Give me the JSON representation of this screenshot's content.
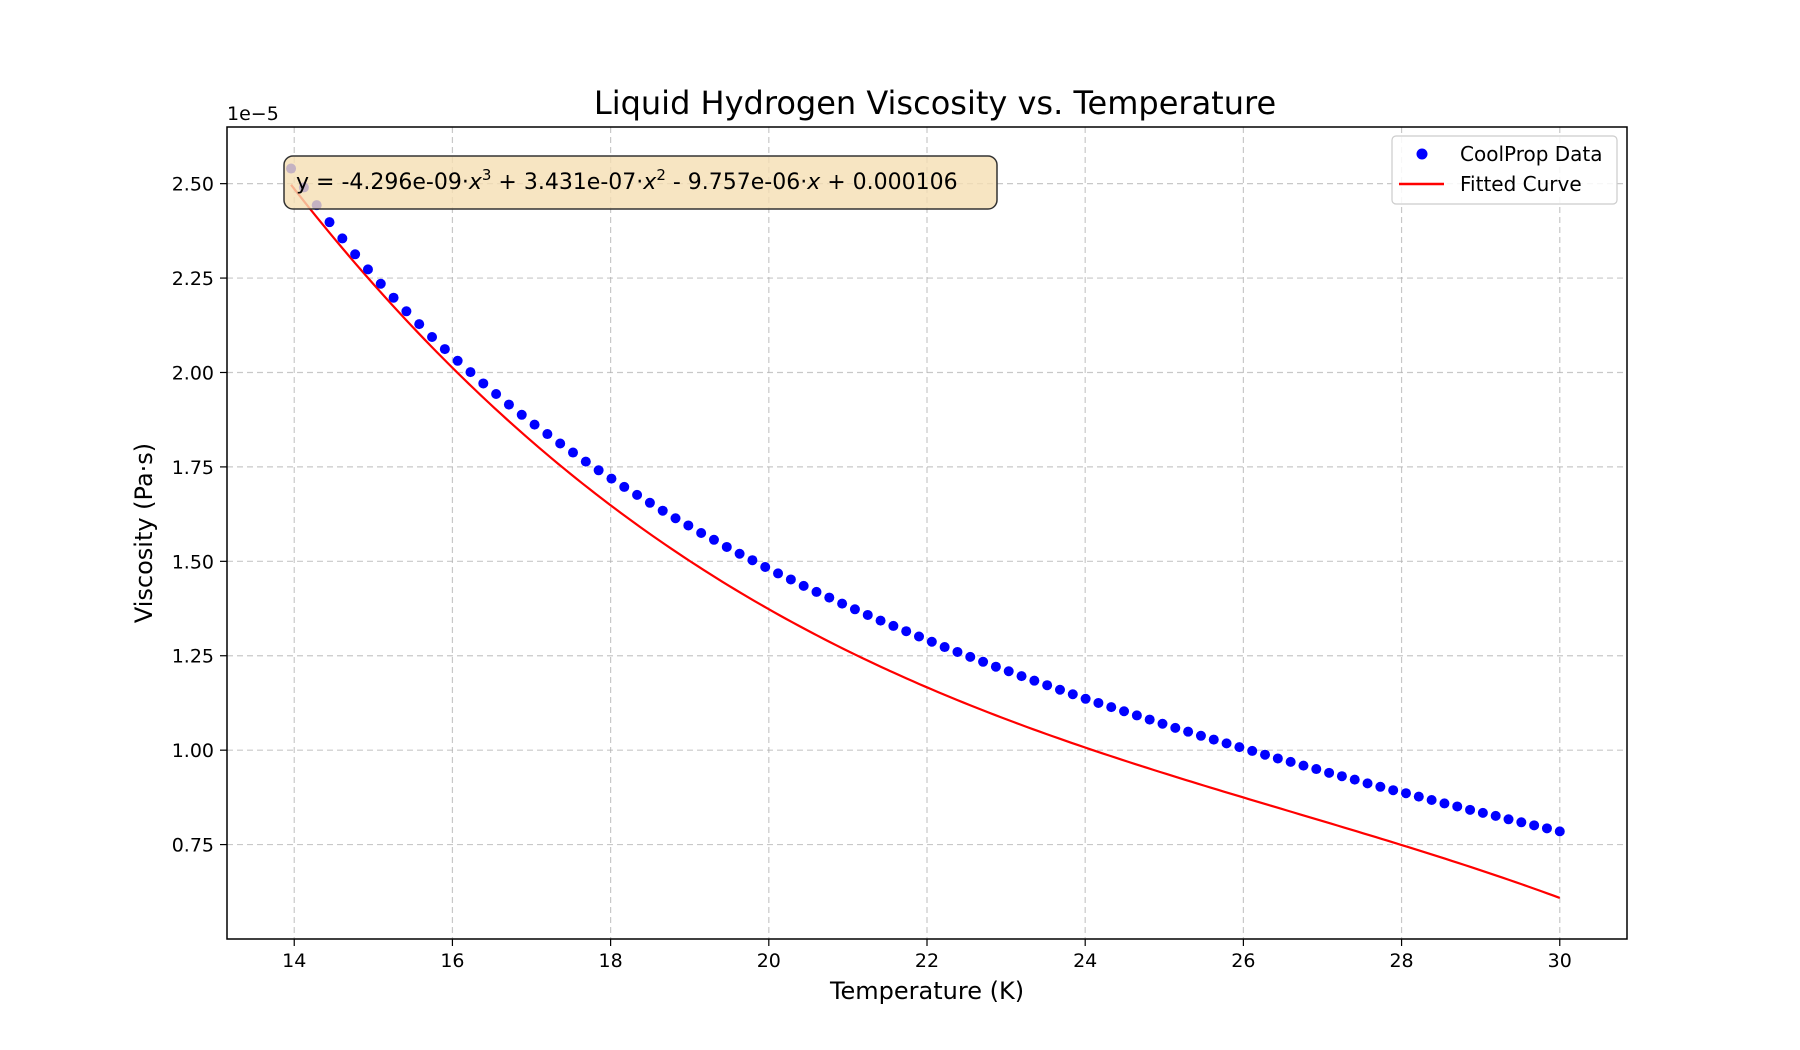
{
  "chart_data": {
    "type": "scatter",
    "title": "Liquid Hydrogen Viscosity vs. Temperature",
    "xlabel": "Temperature (K)",
    "ylabel": "Viscosity (Pa·s)",
    "y_offset_label": "1e−5",
    "xlim": [
      13.15,
      30.85
    ],
    "ylim": [
      5e-06,
      2.65e-05
    ],
    "x_ticks": [
      14,
      16,
      18,
      20,
      22,
      24,
      26,
      28,
      30
    ],
    "x_tick_labels": [
      "14",
      "16",
      "18",
      "20",
      "22",
      "24",
      "26",
      "28",
      "30"
    ],
    "y_ticks": [
      7.5e-06,
      1e-05,
      1.25e-05,
      1.5e-05,
      1.75e-05,
      2e-05,
      2.25e-05,
      2.5e-05
    ],
    "y_tick_labels": [
      "0.75",
      "1.00",
      "1.25",
      "1.50",
      "1.75",
      "2.00",
      "2.25",
      "2.50"
    ],
    "grid": true,
    "legend_position": "top-right",
    "series": [
      {
        "name": "CoolProp Data",
        "kind": "scatter",
        "color": "#0000ff",
        "x_range": [
          13.96,
          30.0
        ],
        "n_points": 100,
        "y_values_1e-5": [
          2.54,
          2.49,
          2.443,
          2.398,
          2.355,
          2.313,
          2.273,
          2.235,
          2.198,
          2.162,
          2.128,
          2.094,
          2.062,
          2.031,
          2.001,
          1.971,
          1.943,
          1.915,
          1.888,
          1.862,
          1.837,
          1.812,
          1.788,
          1.764,
          1.741,
          1.719,
          1.697,
          1.676,
          1.655,
          1.634,
          1.614,
          1.595,
          1.575,
          1.557,
          1.538,
          1.52,
          1.503,
          1.485,
          1.468,
          1.452,
          1.435,
          1.419,
          1.404,
          1.388,
          1.373,
          1.358,
          1.343,
          1.329,
          1.315,
          1.301,
          1.287,
          1.273,
          1.26,
          1.247,
          1.234,
          1.221,
          1.209,
          1.196,
          1.184,
          1.172,
          1.16,
          1.148,
          1.136,
          1.125,
          1.114,
          1.103,
          1.092,
          1.081,
          1.07,
          1.059,
          1.049,
          1.038,
          1.028,
          1.018,
          1.008,
          0.998,
          0.988,
          0.978,
          0.969,
          0.959,
          0.95,
          0.94,
          0.931,
          0.922,
          0.912,
          0.903,
          0.894,
          0.886,
          0.877,
          0.868,
          0.859,
          0.851,
          0.842,
          0.834,
          0.826,
          0.817,
          0.809,
          0.801,
          0.793,
          0.785
        ]
      },
      {
        "name": "Fitted Curve",
        "kind": "line",
        "color": "#ff0000",
        "polynomial_coefficients": [
          -4.296e-09,
          3.431e-07,
          -9.757e-06,
          0.000106
        ],
        "x_range": [
          13.96,
          30.0
        ]
      }
    ],
    "annotation": {
      "prefix": "y = -4.296e-09·",
      "term1_exp": "3",
      "mid1": " + 3.431e-07·",
      "term2_exp": "2",
      "mid2": " - 9.757e-06·",
      "suffix": " + 0.000106",
      "var": "x",
      "box_color": "#f5deb3"
    }
  }
}
